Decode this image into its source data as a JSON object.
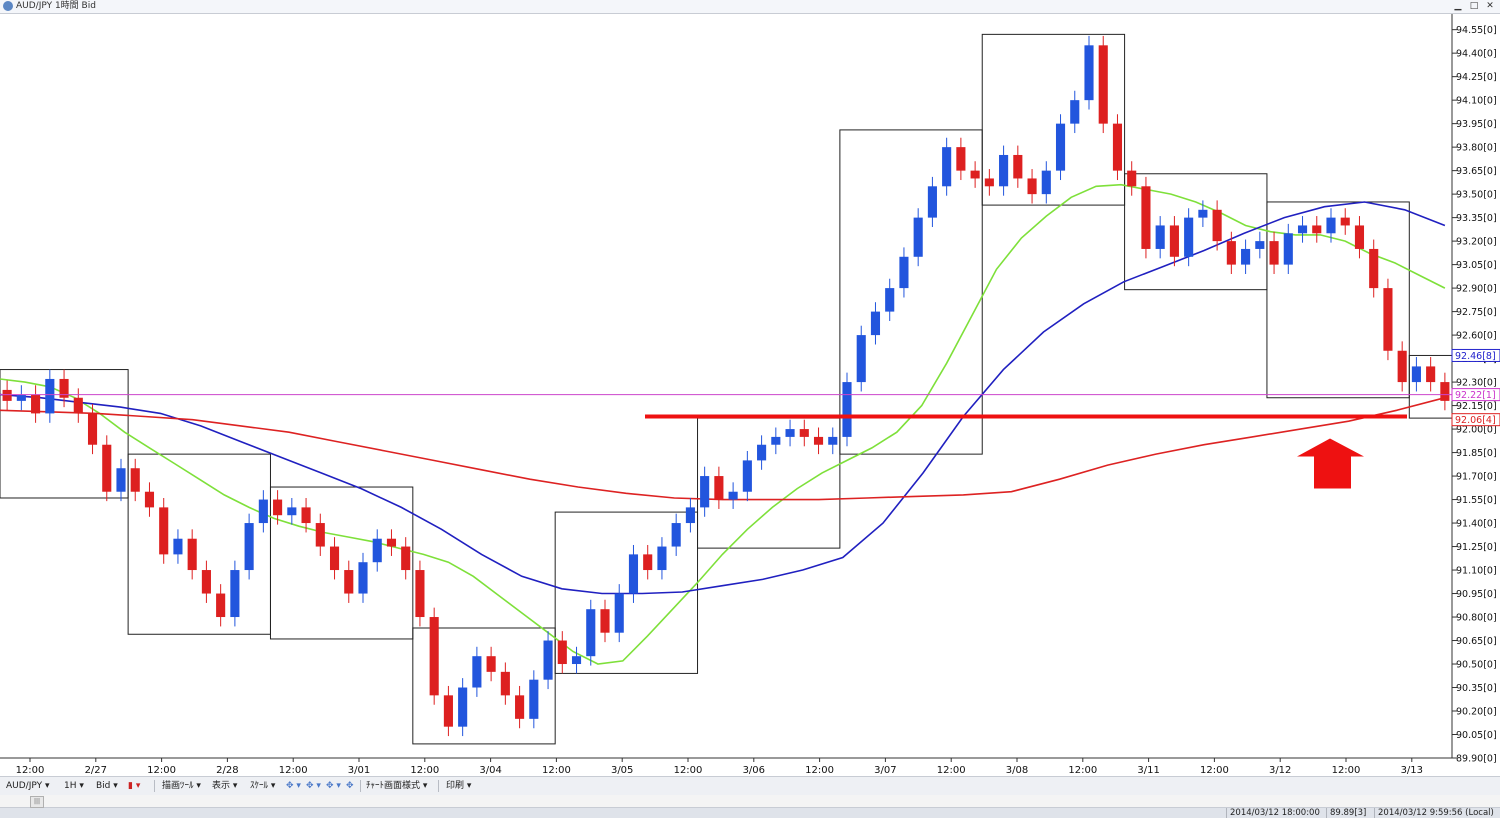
{
  "window": {
    "title": "AUD/JPY 1時間 Bid"
  },
  "toolbar": {
    "symbol": "AUD/JPY",
    "timeframe": "1H",
    "price_side": "Bid",
    "draw_tools": "描画ﾂｰﾙ",
    "display": "表示",
    "scale": "ｽｹｰﾙ",
    "chart_style": "ﾁｬｰﾄ画面様式",
    "print": "印刷"
  },
  "status": {
    "chart_time": "2014/03/12 18:00:00",
    "cursor_value": "89.89[3]",
    "local_time": "2014/03/12 9:59:56 (Local)"
  },
  "colors": {
    "bull": "#2255dd",
    "bear": "#dd2020",
    "ma_short": "#7ee03a",
    "ma_mid": "#2020c0",
    "ma_long": "#dd2222",
    "support": "#ee1111",
    "arrow": "#ee1111",
    "bid_line": "#cc44cc"
  },
  "chart_data": {
    "type": "candlestick",
    "title": "AUD/JPY 1時間 Bid",
    "ylim": [
      89.9,
      94.65
    ],
    "y_ticks": [
      "94.55[0]",
      "94.40[0]",
      "94.25[0]",
      "94.10[0]",
      "93.95[0]",
      "93.80[0]",
      "93.65[0]",
      "93.50[0]",
      "93.35[0]",
      "93.20[0]",
      "93.05[0]",
      "92.90[0]",
      "92.75[0]",
      "92.60[0]",
      "92.45[0]",
      "92.30[0]",
      "92.15[0]",
      "92.00[0]",
      "91.85[0]",
      "91.70[0]",
      "91.55[0]",
      "91.40[0]",
      "91.25[0]",
      "91.10[0]",
      "90.95[0]",
      "90.80[0]",
      "90.65[0]",
      "90.50[0]",
      "90.35[0]",
      "90.20[0]",
      "90.05[0]",
      "89.90[0]"
    ],
    "x_ticks": [
      "12:00",
      "2/27",
      "12:00",
      "2/28",
      "12:00",
      "3/01",
      "12:00",
      "3/04",
      "12:00",
      "3/05",
      "12:00",
      "3/06",
      "12:00",
      "3/07",
      "12:00",
      "3/08",
      "12:00",
      "3/11",
      "12:00",
      "3/12",
      "12:00",
      "3/13"
    ],
    "price_tags": [
      {
        "label": "92.46[8]",
        "value": 92.47,
        "color": "#2222cc"
      },
      {
        "label": "92.22[1]",
        "value": 92.22,
        "color": "#cc33cc"
      },
      {
        "label": "92.06[4]",
        "value": 92.06,
        "color": "#dd2222"
      }
    ],
    "bid_line": 92.22,
    "support_line": 92.08,
    "session_boxes": [
      {
        "start": 0,
        "end": 9,
        "high": 92.38,
        "low": 91.56
      },
      {
        "start": 9,
        "end": 19,
        "high": 91.84,
        "low": 90.69
      },
      {
        "start": 19,
        "end": 29,
        "high": 91.63,
        "low": 90.66
      },
      {
        "start": 29,
        "end": 39,
        "high": 90.73,
        "low": 89.99
      },
      {
        "start": 39,
        "end": 49,
        "high": 91.47,
        "low": 90.44
      },
      {
        "start": 49,
        "end": 59,
        "high": 92.07,
        "low": 91.24
      },
      {
        "start": 59,
        "end": 69,
        "high": 93.91,
        "low": 91.84
      },
      {
        "start": 69,
        "end": 79,
        "high": 94.52,
        "low": 93.43
      },
      {
        "start": 79,
        "end": 89,
        "high": 93.63,
        "low": 92.89
      },
      {
        "start": 89,
        "end": 99,
        "high": 93.45,
        "low": 92.2
      },
      {
        "start": 99,
        "end": 107,
        "high": 92.47,
        "low": 92.07
      }
    ],
    "candles": [
      [
        92.25,
        92.18
      ],
      [
        92.18,
        92.22
      ],
      [
        92.22,
        92.1
      ],
      [
        92.1,
        92.32
      ],
      [
        92.32,
        92.2
      ],
      [
        92.2,
        92.1
      ],
      [
        92.1,
        91.9
      ],
      [
        91.9,
        91.6
      ],
      [
        91.6,
        91.75
      ],
      [
        91.75,
        91.6
      ],
      [
        91.6,
        91.5
      ],
      [
        91.5,
        91.2
      ],
      [
        91.2,
        91.3
      ],
      [
        91.3,
        91.1
      ],
      [
        91.1,
        90.95
      ],
      [
        90.95,
        90.8
      ],
      [
        90.8,
        91.1
      ],
      [
        91.1,
        91.4
      ],
      [
        91.4,
        91.55
      ],
      [
        91.55,
        91.45
      ],
      [
        91.45,
        91.5
      ],
      [
        91.5,
        91.4
      ],
      [
        91.4,
        91.25
      ],
      [
        91.25,
        91.1
      ],
      [
        91.1,
        90.95
      ],
      [
        90.95,
        91.15
      ],
      [
        91.15,
        91.3
      ],
      [
        91.3,
        91.25
      ],
      [
        91.25,
        91.1
      ],
      [
        91.1,
        90.8
      ],
      [
        90.8,
        90.3
      ],
      [
        90.3,
        90.1
      ],
      [
        90.1,
        90.35
      ],
      [
        90.35,
        90.55
      ],
      [
        90.55,
        90.45
      ],
      [
        90.45,
        90.3
      ],
      [
        90.3,
        90.15
      ],
      [
        90.15,
        90.4
      ],
      [
        90.4,
        90.65
      ],
      [
        90.65,
        90.5
      ],
      [
        90.5,
        90.55
      ],
      [
        90.55,
        90.85
      ],
      [
        90.85,
        90.7
      ],
      [
        90.7,
        90.95
      ],
      [
        90.95,
        91.2
      ],
      [
        91.2,
        91.1
      ],
      [
        91.1,
        91.25
      ],
      [
        91.25,
        91.4
      ],
      [
        91.4,
        91.5
      ],
      [
        91.5,
        91.7
      ],
      [
        91.7,
        91.55
      ],
      [
        91.55,
        91.6
      ],
      [
        91.6,
        91.8
      ],
      [
        91.8,
        91.9
      ],
      [
        91.9,
        91.95
      ],
      [
        91.95,
        92.0
      ],
      [
        92.0,
        91.95
      ],
      [
        91.95,
        91.9
      ],
      [
        91.9,
        91.95
      ],
      [
        91.95,
        92.3
      ],
      [
        92.3,
        92.6
      ],
      [
        92.6,
        92.75
      ],
      [
        92.75,
        92.9
      ],
      [
        92.9,
        93.1
      ],
      [
        93.1,
        93.35
      ],
      [
        93.35,
        93.55
      ],
      [
        93.55,
        93.8
      ],
      [
        93.8,
        93.65
      ],
      [
        93.65,
        93.6
      ],
      [
        93.6,
        93.55
      ],
      [
        93.55,
        93.75
      ],
      [
        93.75,
        93.6
      ],
      [
        93.6,
        93.5
      ],
      [
        93.5,
        93.65
      ],
      [
        93.65,
        93.95
      ],
      [
        93.95,
        94.1
      ],
      [
        94.1,
        94.45
      ],
      [
        94.45,
        93.95
      ],
      [
        93.95,
        93.65
      ],
      [
        93.65,
        93.55
      ],
      [
        93.55,
        93.15
      ],
      [
        93.15,
        93.3
      ],
      [
        93.3,
        93.1
      ],
      [
        93.1,
        93.35
      ],
      [
        93.35,
        93.4
      ],
      [
        93.4,
        93.2
      ],
      [
        93.2,
        93.05
      ],
      [
        93.05,
        93.15
      ],
      [
        93.15,
        93.2
      ],
      [
        93.2,
        93.05
      ],
      [
        93.05,
        93.25
      ],
      [
        93.25,
        93.3
      ],
      [
        93.3,
        93.25
      ],
      [
        93.25,
        93.35
      ],
      [
        93.35,
        93.3
      ],
      [
        93.3,
        93.15
      ],
      [
        93.15,
        92.9
      ],
      [
        92.9,
        92.5
      ],
      [
        92.5,
        92.3
      ],
      [
        92.3,
        92.4
      ],
      [
        92.4,
        92.3
      ],
      [
        92.3,
        92.18
      ]
    ],
    "series": [
      {
        "name": "",
        "role": "ma_short",
        "values": [
          92.32,
          92.3,
          92.27,
          92.2,
          92.1,
          91.98,
          91.88,
          91.78,
          91.68,
          91.58,
          91.5,
          91.43,
          91.38,
          91.34,
          91.31,
          91.28,
          91.24,
          91.2,
          91.15,
          91.06,
          90.94,
          90.82,
          90.7,
          90.58,
          90.5,
          90.52,
          90.68,
          90.85,
          91.02,
          91.2,
          91.36,
          91.5,
          91.62,
          91.72,
          91.8,
          91.88,
          91.98,
          92.15,
          92.42,
          92.72,
          93.02,
          93.22,
          93.36,
          93.48,
          93.55,
          93.56,
          93.53,
          93.5,
          93.45,
          93.38,
          93.3,
          93.26,
          93.24,
          93.24,
          93.2,
          93.12,
          93.06,
          92.98,
          92.9
        ]
      },
      {
        "name": "",
        "role": "ma_mid",
        "values": [
          92.22,
          92.2,
          92.17,
          92.14,
          92.1,
          92.02,
          91.92,
          91.82,
          91.72,
          91.62,
          91.5,
          91.36,
          91.2,
          91.06,
          90.98,
          90.95,
          90.95,
          90.96,
          91.0,
          91.04,
          91.1,
          91.18,
          91.4,
          91.72,
          92.08,
          92.38,
          92.62,
          92.8,
          92.94,
          93.04,
          93.14,
          93.25,
          93.35,
          93.42,
          93.45,
          93.4,
          93.3
        ]
      },
      {
        "name": "",
        "role": "ma_long",
        "values": [
          92.12,
          92.11,
          92.1,
          92.08,
          92.06,
          92.02,
          91.98,
          91.92,
          91.86,
          91.8,
          91.74,
          91.68,
          91.63,
          91.59,
          91.56,
          91.55,
          91.55,
          91.55,
          91.56,
          91.57,
          91.58,
          91.6,
          91.68,
          91.77,
          91.84,
          91.9,
          91.95,
          92.0,
          92.05,
          92.12,
          92.2
        ]
      }
    ]
  }
}
